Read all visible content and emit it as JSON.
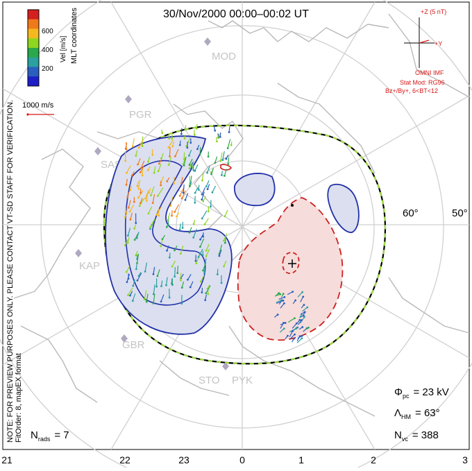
{
  "title": "30/Nov/2000 00:00–00:02 UT",
  "colorbar": {
    "ticks": [
      "600",
      "400",
      "200"
    ],
    "label": "Vel [m/s]",
    "colors": [
      "#d42020",
      "#f07a1a",
      "#f5b81e",
      "#8fd61e",
      "#2aa84a",
      "#2aa0a0",
      "#2a5fc0",
      "#1e1ec8"
    ]
  },
  "coordinates_label": "MLT coordinates",
  "reference_vector": "1000 m/s",
  "imf": {
    "bz_label": "+Z (5 nT)",
    "by_label": "+Y",
    "source": "OMNI IMF",
    "model": "Stat Mod: RG96",
    "bin": "Bz+/By+, 6<BT<12"
  },
  "notes": {
    "preview": "NOTE: FOR PREVIEW PURPOSES ONLY. PLEASE CONTACT VT-SD STAFF FOR VERIFICATION.",
    "fit": "FitOrder: 8, mapEX format"
  },
  "stations": [
    "MOD",
    "PGR",
    "SAS",
    "KAP",
    "GBR",
    "STO",
    "PYK"
  ],
  "lat_labels": [
    "60°",
    "50°"
  ],
  "mlt_ticks": [
    "21",
    "22",
    "23",
    "0",
    "1",
    "2",
    "3"
  ],
  "stats": {
    "phi_pc_label": "Φ",
    "phi_pc_sub": "pc",
    "phi_pc_value": "= 23 kV",
    "lambda_label": "Λ",
    "lambda_sub": "HM",
    "lambda_value": "= 63°",
    "nvc_label": "N",
    "nvc_sub": "vc",
    "nvc_value": "= 388",
    "nrads_label": "N",
    "nrads_sub": "rads",
    "nrads_value": "= 7"
  },
  "style": {
    "negative_cell": "#2230a8",
    "positive_cell": "#cc2020",
    "negative_fill": "#dcdff0",
    "positive_fill": "#f6dcda",
    "hm_boundary_dash_a": "#000000",
    "hm_boundary_dash_b": "#9fdc40",
    "grid": "#d0d0d0",
    "coast": "#b8b8b8"
  }
}
